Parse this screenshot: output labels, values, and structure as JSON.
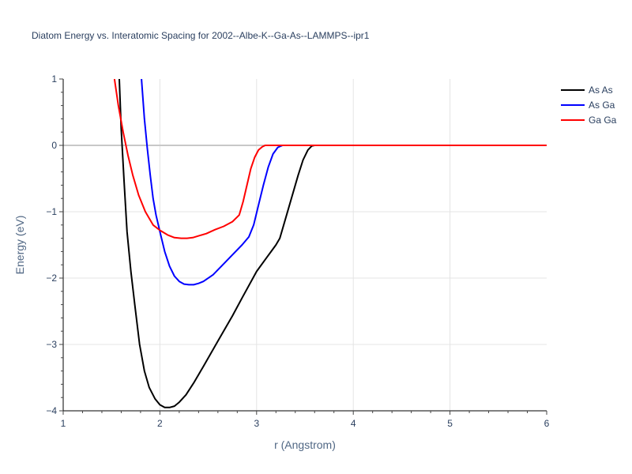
{
  "chart_data": {
    "type": "line",
    "title": "Diatom Energy vs. Interatomic Spacing for 2002--Albe-K--Ga-As--LAMMPS--ipr1",
    "xlabel": "r (Angstrom)",
    "ylabel": "Energy (eV)",
    "xlim": [
      1,
      6
    ],
    "ylim": [
      -4,
      1
    ],
    "x_ticks": [
      1,
      2,
      3,
      4,
      5,
      6
    ],
    "y_ticks": [
      1,
      0,
      -1,
      -2,
      -3,
      -4
    ],
    "x_tick_labels": [
      "1",
      "2",
      "3",
      "4",
      "5",
      "6"
    ],
    "y_tick_labels": [
      "1",
      "0",
      "−1",
      "−2",
      "−3",
      "−4"
    ],
    "grid": true,
    "legend_position": "top-right",
    "series": [
      {
        "name": "As As",
        "color": "#000000",
        "x": [
          1.58,
          1.6,
          1.63,
          1.66,
          1.7,
          1.74,
          1.79,
          1.84,
          1.89,
          1.95,
          2.0,
          2.05,
          2.1,
          2.15,
          2.2,
          2.27,
          2.35,
          2.45,
          2.6,
          2.75,
          2.85,
          3.0,
          3.1,
          3.15,
          3.2,
          3.24,
          3.28,
          3.33,
          3.38,
          3.43,
          3.48,
          3.53,
          3.57,
          3.6,
          4.0,
          5.0,
          6.0
        ],
        "y": [
          1.0,
          0.25,
          -0.55,
          -1.3,
          -1.9,
          -2.4,
          -3.0,
          -3.4,
          -3.65,
          -3.82,
          -3.91,
          -3.95,
          -3.95,
          -3.93,
          -3.87,
          -3.76,
          -3.58,
          -3.33,
          -2.95,
          -2.57,
          -2.3,
          -1.9,
          -1.7,
          -1.6,
          -1.5,
          -1.4,
          -1.2,
          -0.95,
          -0.7,
          -0.45,
          -0.22,
          -0.07,
          -0.01,
          0.0,
          0.0,
          0.0,
          0.0
        ]
      },
      {
        "name": "As Ga",
        "color": "#0000ff",
        "x": [
          1.81,
          1.84,
          1.87,
          1.9,
          1.93,
          1.96,
          2.0,
          2.05,
          2.1,
          2.15,
          2.2,
          2.25,
          2.3,
          2.35,
          2.4,
          2.45,
          2.55,
          2.65,
          2.75,
          2.85,
          2.92,
          2.97,
          3.02,
          3.07,
          3.12,
          3.17,
          3.22,
          3.27,
          3.3,
          4.0,
          5.0,
          6.0
        ],
        "y": [
          1.0,
          0.4,
          -0.05,
          -0.45,
          -0.8,
          -1.05,
          -1.3,
          -1.6,
          -1.82,
          -1.97,
          -2.05,
          -2.09,
          -2.1,
          -2.1,
          -2.08,
          -2.05,
          -1.95,
          -1.8,
          -1.65,
          -1.5,
          -1.38,
          -1.2,
          -0.9,
          -0.6,
          -0.33,
          -0.13,
          -0.03,
          0.0,
          0.0,
          0.0,
          0.0,
          0.0
        ]
      },
      {
        "name": "Ga Ga",
        "color": "#ff0000",
        "x": [
          1.53,
          1.57,
          1.62,
          1.67,
          1.72,
          1.78,
          1.85,
          1.93,
          2.0,
          2.08,
          2.15,
          2.22,
          2.28,
          2.34,
          2.41,
          2.48,
          2.57,
          2.66,
          2.75,
          2.82,
          2.86,
          2.9,
          2.94,
          2.98,
          3.02,
          3.06,
          3.09,
          3.12,
          4.0,
          5.0,
          6.0
        ],
        "y": [
          1.0,
          0.6,
          0.2,
          -0.15,
          -0.45,
          -0.75,
          -1.0,
          -1.2,
          -1.28,
          -1.35,
          -1.39,
          -1.4,
          -1.4,
          -1.39,
          -1.36,
          -1.33,
          -1.27,
          -1.22,
          -1.15,
          -1.05,
          -0.85,
          -0.6,
          -0.35,
          -0.18,
          -0.07,
          -0.02,
          0.0,
          0.0,
          0.0,
          0.0,
          0.0
        ]
      }
    ]
  }
}
